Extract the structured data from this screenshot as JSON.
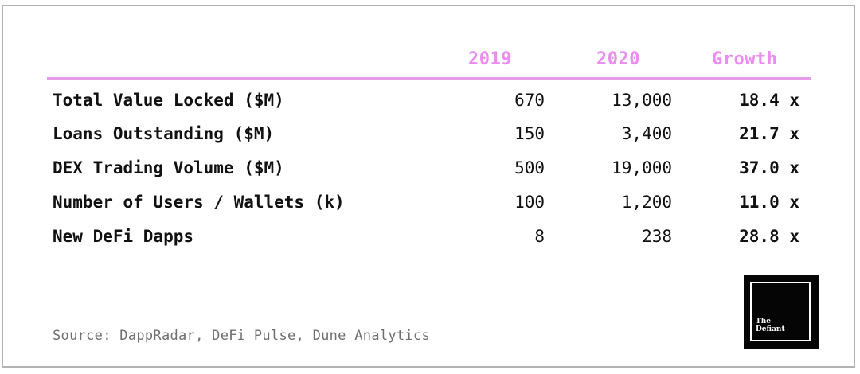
{
  "table": {
    "columns": [
      "2019",
      "2020",
      "Growth"
    ],
    "rows": [
      {
        "label": "Total Value Locked ($M)",
        "y2019": "670",
        "y2020": "13,000",
        "growth": "18.4 x"
      },
      {
        "label": "Loans Outstanding ($M)",
        "y2019": "150",
        "y2020": "3,400",
        "growth": "21.7 x"
      },
      {
        "label": "DEX Trading Volume ($M)",
        "y2019": "500",
        "y2020": "19,000",
        "growth": "37.0 x"
      },
      {
        "label": "Number of Users / Wallets (k)",
        "y2019": "100",
        "y2020": "1,200",
        "growth": "11.0 x"
      },
      {
        "label": "New DeFi Dapps",
        "y2019": "8",
        "y2020": "238",
        "growth": "28.8 x"
      }
    ]
  },
  "source": "Source: DappRadar, DeFi Pulse, Dune Analytics",
  "logo": {
    "line1": "The",
    "line2": "Defiant"
  },
  "colors": {
    "header_accent": "#ea8cf0",
    "rule": "#e79be8",
    "text": "#111111",
    "source_text": "#6f6f6f",
    "logo_bg": "#050505",
    "border": "#b3b3b3"
  }
}
